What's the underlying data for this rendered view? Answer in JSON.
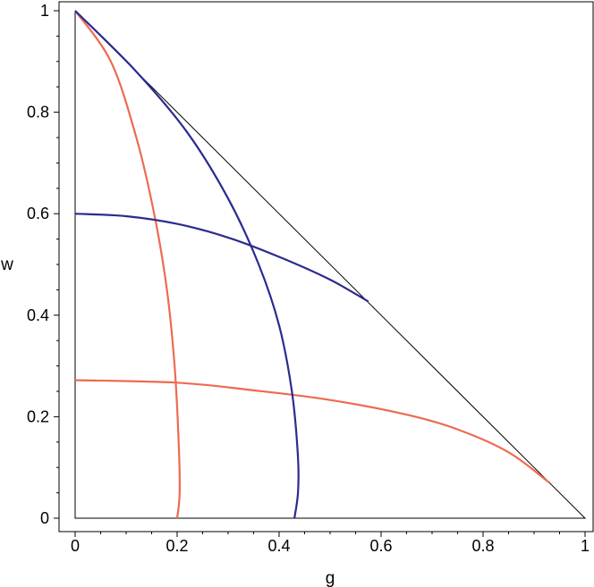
{
  "chart_data": {
    "type": "line",
    "title": "",
    "xlabel": "g",
    "ylabel": "w",
    "xlim": [
      0,
      1
    ],
    "ylim": [
      0,
      1
    ],
    "xticks": [
      "0",
      "0.2",
      "0.4",
      "0.6",
      "0.8",
      "1"
    ],
    "yticks": [
      "0",
      "0.2",
      "0.4",
      "0.6",
      "0.8",
      "1"
    ],
    "grid": false,
    "legend": "none",
    "colors": {
      "triangle": "#000000",
      "red": "#ee6a50",
      "blue": "#2b2b8f"
    },
    "series": [
      {
        "color": "#000000",
        "x": [
          0,
          1,
          0,
          0
        ],
        "y": [
          1,
          0,
          0,
          1
        ]
      },
      {
        "color": "#ee6a50",
        "x": [
          0,
          0.07,
          0.12,
          0.155,
          0.18,
          0.195,
          0.203,
          0.205,
          0.2
        ],
        "y": [
          1,
          0.9,
          0.75,
          0.6,
          0.45,
          0.3,
          0.15,
          0.05,
          0
        ]
      },
      {
        "color": "#ee6a50",
        "x": [
          0,
          0.2,
          0.35,
          0.5,
          0.65,
          0.75,
          0.85,
          0.93
        ],
        "y": [
          0.272,
          0.267,
          0.252,
          0.233,
          0.204,
          0.175,
          0.13,
          0.07
        ]
      },
      {
        "color": "#2b2b8f",
        "x": [
          0,
          0.12,
          0.22,
          0.3,
          0.36,
          0.4,
          0.425,
          0.437,
          0.437,
          0.43
        ],
        "y": [
          1,
          0.88,
          0.76,
          0.63,
          0.5,
          0.38,
          0.25,
          0.12,
          0.05,
          0
        ]
      },
      {
        "color": "#2b2b8f",
        "x": [
          0,
          0.1,
          0.2,
          0.3,
          0.4,
          0.5,
          0.575
        ],
        "y": [
          0.6,
          0.595,
          0.58,
          0.553,
          0.515,
          0.47,
          0.427
        ]
      }
    ]
  }
}
